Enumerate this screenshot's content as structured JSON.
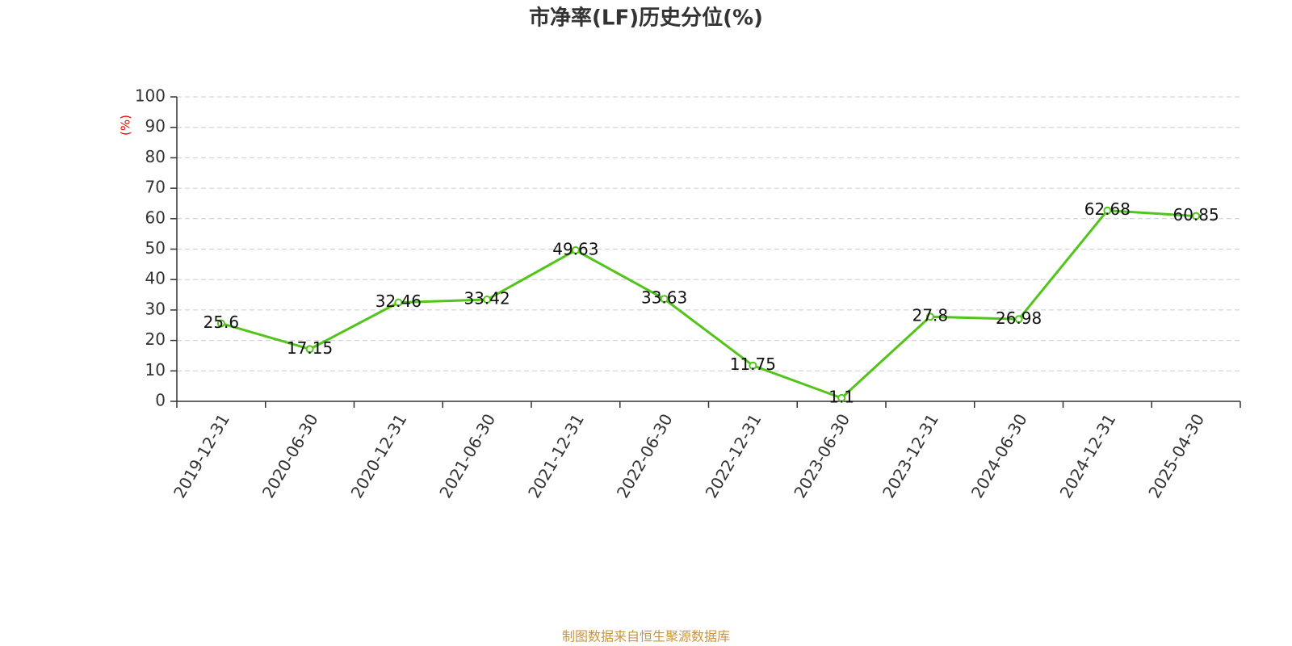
{
  "chart_data": {
    "type": "line",
    "title": "市净率(LF)历史分位(%)",
    "y_label": "(%)",
    "source": "制图数据来自恒生聚源数据库",
    "categories": [
      "2019-12-31",
      "2020-06-30",
      "2020-12-31",
      "2021-06-30",
      "2021-12-31",
      "2022-06-30",
      "2022-12-31",
      "2023-06-30",
      "2023-12-31",
      "2024-06-30",
      "2024-12-31",
      "2025-04-30"
    ],
    "values": [
      25.6,
      17.15,
      32.46,
      33.42,
      49.63,
      33.63,
      11.75,
      1.1,
      27.8,
      26.98,
      62.68,
      60.85
    ],
    "color": "#52c41a",
    "ylim": [
      0,
      100
    ],
    "yticks": [
      0,
      10,
      20,
      30,
      40,
      50,
      60,
      70,
      80,
      90,
      100
    ],
    "grid": true
  }
}
